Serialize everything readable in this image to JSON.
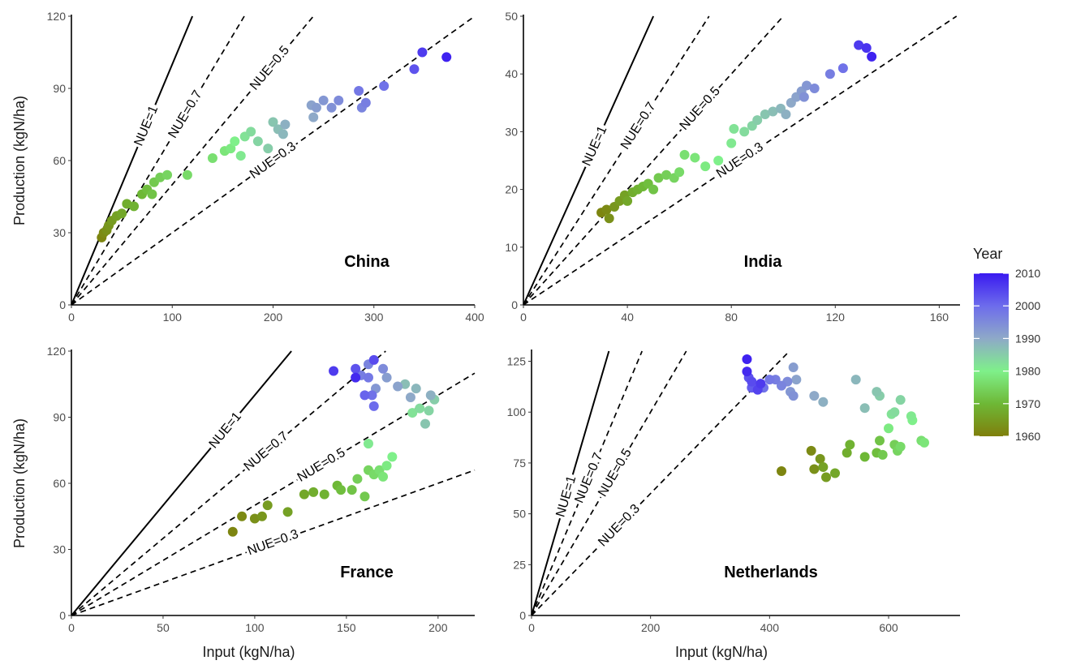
{
  "chart_data": [
    {
      "type": "scatter",
      "panel_label": "China",
      "xlabel": "",
      "ylabel": "Production (kgN/ha)",
      "xlim": [
        0,
        400
      ],
      "ylim": [
        0,
        120
      ],
      "xticks": [
        0,
        100,
        200,
        300,
        400
      ],
      "yticks": [
        0,
        30,
        60,
        90,
        120
      ],
      "reference_lines": [
        {
          "label": "NUE=1",
          "slope": 1,
          "style": "solid"
        },
        {
          "label": "NUE=0.7",
          "slope": 0.7,
          "style": "dashed"
        },
        {
          "label": "NUE=0.5",
          "slope": 0.5,
          "style": "dashed"
        },
        {
          "label": "NUE=0.3",
          "slope": 0.3,
          "style": "dashed"
        }
      ],
      "points": [
        {
          "x": 30,
          "y": 28,
          "year": 1961
        },
        {
          "x": 32,
          "y": 30,
          "year": 1962
        },
        {
          "x": 35,
          "y": 31,
          "year": 1963
        },
        {
          "x": 37,
          "y": 33,
          "year": 1964
        },
        {
          "x": 40,
          "y": 35,
          "year": 1965
        },
        {
          "x": 45,
          "y": 37,
          "year": 1966
        },
        {
          "x": 50,
          "y": 38,
          "year": 1967
        },
        {
          "x": 55,
          "y": 42,
          "year": 1968
        },
        {
          "x": 62,
          "y": 41,
          "year": 1969
        },
        {
          "x": 70,
          "y": 46,
          "year": 1970
        },
        {
          "x": 75,
          "y": 48,
          "year": 1971
        },
        {
          "x": 80,
          "y": 46,
          "year": 1972
        },
        {
          "x": 82,
          "y": 51,
          "year": 1973
        },
        {
          "x": 88,
          "y": 53,
          "year": 1974
        },
        {
          "x": 95,
          "y": 54,
          "year": 1975
        },
        {
          "x": 115,
          "y": 54,
          "year": 1976
        },
        {
          "x": 140,
          "y": 61,
          "year": 1977
        },
        {
          "x": 152,
          "y": 64,
          "year": 1978
        },
        {
          "x": 158,
          "y": 65,
          "year": 1979
        },
        {
          "x": 162,
          "y": 68,
          "year": 1980
        },
        {
          "x": 168,
          "y": 62,
          "year": 1981
        },
        {
          "x": 172,
          "y": 70,
          "year": 1982
        },
        {
          "x": 178,
          "y": 72,
          "year": 1983
        },
        {
          "x": 185,
          "y": 68,
          "year": 1984
        },
        {
          "x": 195,
          "y": 65,
          "year": 1985
        },
        {
          "x": 200,
          "y": 76,
          "year": 1986
        },
        {
          "x": 205,
          "y": 73,
          "year": 1987
        },
        {
          "x": 210,
          "y": 71,
          "year": 1988
        },
        {
          "x": 212,
          "y": 75,
          "year": 1989
        },
        {
          "x": 240,
          "y": 78,
          "year": 1990
        },
        {
          "x": 238,
          "y": 83,
          "year": 1991
        },
        {
          "x": 243,
          "y": 82,
          "year": 1992
        },
        {
          "x": 250,
          "y": 85,
          "year": 1993
        },
        {
          "x": 258,
          "y": 82,
          "year": 1994
        },
        {
          "x": 265,
          "y": 85,
          "year": 1995
        },
        {
          "x": 288,
          "y": 82,
          "year": 1996
        },
        {
          "x": 292,
          "y": 84,
          "year": 1997
        },
        {
          "x": 285,
          "y": 89,
          "year": 1998
        },
        {
          "x": 310,
          "y": 91,
          "year": 1999
        },
        {
          "x": 340,
          "y": 98,
          "year": 2003
        },
        {
          "x": 348,
          "y": 105,
          "year": 2006
        },
        {
          "x": 372,
          "y": 103,
          "year": 2009
        }
      ]
    },
    {
      "type": "scatter",
      "panel_label": "India",
      "xlabel": "",
      "ylabel": "",
      "xlim": [
        0,
        168
      ],
      "ylim": [
        0,
        50
      ],
      "xticks": [
        0,
        40,
        80,
        120,
        160
      ],
      "yticks": [
        0,
        10,
        20,
        30,
        40,
        50
      ],
      "reference_lines": [
        {
          "label": "NUE=1",
          "slope": 1,
          "style": "solid"
        },
        {
          "label": "NUE=0.7",
          "slope": 0.7,
          "style": "dashed"
        },
        {
          "label": "NUE=0.5",
          "slope": 0.5,
          "style": "dashed"
        },
        {
          "label": "NUE=0.3",
          "slope": 0.3,
          "style": "dashed"
        }
      ],
      "points": [
        {
          "x": 30,
          "y": 16,
          "year": 1961
        },
        {
          "x": 32,
          "y": 16.5,
          "year": 1962
        },
        {
          "x": 33,
          "y": 15,
          "year": 1963
        },
        {
          "x": 35,
          "y": 17,
          "year": 1964
        },
        {
          "x": 37,
          "y": 18,
          "year": 1965
        },
        {
          "x": 39,
          "y": 19,
          "year": 1966
        },
        {
          "x": 40,
          "y": 18,
          "year": 1967
        },
        {
          "x": 42,
          "y": 19.5,
          "year": 1968
        },
        {
          "x": 44,
          "y": 20,
          "year": 1969
        },
        {
          "x": 46,
          "y": 20.5,
          "year": 1970
        },
        {
          "x": 48,
          "y": 21,
          "year": 1971
        },
        {
          "x": 50,
          "y": 20,
          "year": 1972
        },
        {
          "x": 52,
          "y": 22,
          "year": 1973
        },
        {
          "x": 55,
          "y": 22.5,
          "year": 1974
        },
        {
          "x": 58,
          "y": 22,
          "year": 1975
        },
        {
          "x": 60,
          "y": 23,
          "year": 1976
        },
        {
          "x": 62,
          "y": 26,
          "year": 1977
        },
        {
          "x": 66,
          "y": 25.5,
          "year": 1978
        },
        {
          "x": 70,
          "y": 24,
          "year": 1979
        },
        {
          "x": 75,
          "y": 25,
          "year": 1980
        },
        {
          "x": 80,
          "y": 28,
          "year": 1981
        },
        {
          "x": 81,
          "y": 30.5,
          "year": 1982
        },
        {
          "x": 85,
          "y": 30,
          "year": 1983
        },
        {
          "x": 88,
          "y": 31,
          "year": 1984
        },
        {
          "x": 90,
          "y": 32,
          "year": 1985
        },
        {
          "x": 93,
          "y": 33,
          "year": 1986
        },
        {
          "x": 96,
          "y": 33.5,
          "year": 1987
        },
        {
          "x": 99,
          "y": 34,
          "year": 1988
        },
        {
          "x": 101,
          "y": 33,
          "year": 1989
        },
        {
          "x": 103,
          "y": 35,
          "year": 1990
        },
        {
          "x": 105,
          "y": 36,
          "year": 1991
        },
        {
          "x": 107,
          "y": 37,
          "year": 1992
        },
        {
          "x": 109,
          "y": 38,
          "year": 1993
        },
        {
          "x": 108,
          "y": 36,
          "year": 1994
        },
        {
          "x": 112,
          "y": 37.5,
          "year": 1995
        },
        {
          "x": 118,
          "y": 40,
          "year": 1997
        },
        {
          "x": 123,
          "y": 41,
          "year": 1999
        },
        {
          "x": 129,
          "y": 45,
          "year": 2006
        },
        {
          "x": 132,
          "y": 44.5,
          "year": 2007
        },
        {
          "x": 134,
          "y": 43,
          "year": 2009
        }
      ]
    },
    {
      "type": "scatter",
      "panel_label": "France",
      "xlabel": "Input (kgN/ha)",
      "ylabel": "Production (kgN/ha)",
      "xlim": [
        0,
        220
      ],
      "ylim": [
        0,
        120
      ],
      "xticks": [
        0,
        50,
        100,
        150,
        200
      ],
      "yticks": [
        0,
        30,
        60,
        90,
        120
      ],
      "reference_lines": [
        {
          "label": "NUE=1",
          "slope": 1,
          "style": "solid"
        },
        {
          "label": "NUE=0.7",
          "slope": 0.7,
          "style": "dashed"
        },
        {
          "label": "NUE=0.5",
          "slope": 0.5,
          "style": "dashed"
        },
        {
          "label": "NUE=0.3",
          "slope": 0.3,
          "style": "dashed"
        }
      ],
      "points": [
        {
          "x": 88,
          "y": 38,
          "year": 1961
        },
        {
          "x": 93,
          "y": 45,
          "year": 1962
        },
        {
          "x": 100,
          "y": 44,
          "year": 1963
        },
        {
          "x": 104,
          "y": 45,
          "year": 1964
        },
        {
          "x": 107,
          "y": 50,
          "year": 1965
        },
        {
          "x": 118,
          "y": 47,
          "year": 1966
        },
        {
          "x": 127,
          "y": 55,
          "year": 1967
        },
        {
          "x": 132,
          "y": 56,
          "year": 1968
        },
        {
          "x": 138,
          "y": 55,
          "year": 1969
        },
        {
          "x": 145,
          "y": 59,
          "year": 1970
        },
        {
          "x": 147,
          "y": 57,
          "year": 1971
        },
        {
          "x": 153,
          "y": 57,
          "year": 1972
        },
        {
          "x": 160,
          "y": 54,
          "year": 1973
        },
        {
          "x": 156,
          "y": 62,
          "year": 1974
        },
        {
          "x": 162,
          "y": 66,
          "year": 1975
        },
        {
          "x": 165,
          "y": 64,
          "year": 1976
        },
        {
          "x": 168,
          "y": 66,
          "year": 1977
        },
        {
          "x": 170,
          "y": 63,
          "year": 1978
        },
        {
          "x": 172,
          "y": 68,
          "year": 1979
        },
        {
          "x": 175,
          "y": 72,
          "year": 1980
        },
        {
          "x": 162,
          "y": 78,
          "year": 1981
        },
        {
          "x": 186,
          "y": 92,
          "year": 1982
        },
        {
          "x": 190,
          "y": 94,
          "year": 1983
        },
        {
          "x": 195,
          "y": 93,
          "year": 1984
        },
        {
          "x": 198,
          "y": 98,
          "year": 1985
        },
        {
          "x": 193,
          "y": 87,
          "year": 1986
        },
        {
          "x": 182,
          "y": 105,
          "year": 1987
        },
        {
          "x": 188,
          "y": 103,
          "year": 1988
        },
        {
          "x": 196,
          "y": 100,
          "year": 1989
        },
        {
          "x": 185,
          "y": 99,
          "year": 1990
        },
        {
          "x": 178,
          "y": 104,
          "year": 1991
        },
        {
          "x": 172,
          "y": 108,
          "year": 1992
        },
        {
          "x": 166,
          "y": 103,
          "year": 1993
        },
        {
          "x": 170,
          "y": 112,
          "year": 1995
        },
        {
          "x": 162,
          "y": 114,
          "year": 1996
        },
        {
          "x": 158,
          "y": 109,
          "year": 1997
        },
        {
          "x": 162,
          "y": 108,
          "year": 1998
        },
        {
          "x": 164,
          "y": 100,
          "year": 1999
        },
        {
          "x": 165,
          "y": 95,
          "year": 2000
        },
        {
          "x": 160,
          "y": 100,
          "year": 2001
        },
        {
          "x": 155,
          "y": 112,
          "year": 2003
        },
        {
          "x": 165,
          "y": 116,
          "year": 2004
        },
        {
          "x": 143,
          "y": 111,
          "year": 2006
        },
        {
          "x": 155,
          "y": 108,
          "year": 2008
        }
      ]
    },
    {
      "type": "scatter",
      "panel_label": "Netherlands",
      "xlabel": "Input (kgN/ha)",
      "ylabel": "",
      "xlim": [
        0,
        720
      ],
      "ylim": [
        0,
        130
      ],
      "xticks": [
        0,
        200,
        400,
        600
      ],
      "yticks": [
        0,
        25,
        50,
        75,
        100,
        125
      ],
      "reference_lines": [
        {
          "label": "NUE=1",
          "slope": 1,
          "style": "solid"
        },
        {
          "label": "NUE=0.7",
          "slope": 0.7,
          "style": "dashed"
        },
        {
          "label": "NUE=0.5",
          "slope": 0.5,
          "style": "dashed"
        },
        {
          "label": "NUE=0.3",
          "slope": 0.3,
          "style": "dashed"
        }
      ],
      "points": [
        {
          "x": 420,
          "y": 71,
          "year": 1961
        },
        {
          "x": 470,
          "y": 81,
          "year": 1962
        },
        {
          "x": 475,
          "y": 72,
          "year": 1963
        },
        {
          "x": 485,
          "y": 77,
          "year": 1964
        },
        {
          "x": 495,
          "y": 68,
          "year": 1965
        },
        {
          "x": 490,
          "y": 73,
          "year": 1966
        },
        {
          "x": 510,
          "y": 70,
          "year": 1967
        },
        {
          "x": 530,
          "y": 80,
          "year": 1968
        },
        {
          "x": 535,
          "y": 84,
          "year": 1969
        },
        {
          "x": 560,
          "y": 78,
          "year": 1970
        },
        {
          "x": 580,
          "y": 80,
          "year": 1971
        },
        {
          "x": 585,
          "y": 86,
          "year": 1972
        },
        {
          "x": 590,
          "y": 79,
          "year": 1973
        },
        {
          "x": 610,
          "y": 84,
          "year": 1974
        },
        {
          "x": 615,
          "y": 81,
          "year": 1975
        },
        {
          "x": 620,
          "y": 83,
          "year": 1976
        },
        {
          "x": 655,
          "y": 86,
          "year": 1977
        },
        {
          "x": 660,
          "y": 85,
          "year": 1978
        },
        {
          "x": 600,
          "y": 92,
          "year": 1979
        },
        {
          "x": 640,
          "y": 96,
          "year": 1980
        },
        {
          "x": 638,
          "y": 98,
          "year": 1981
        },
        {
          "x": 605,
          "y": 99,
          "year": 1982
        },
        {
          "x": 610,
          "y": 100,
          "year": 1983
        },
        {
          "x": 620,
          "y": 106,
          "year": 1984
        },
        {
          "x": 585,
          "y": 108,
          "year": 1985
        },
        {
          "x": 580,
          "y": 110,
          "year": 1986
        },
        {
          "x": 560,
          "y": 102,
          "year": 1987
        },
        {
          "x": 545,
          "y": 116,
          "year": 1988
        },
        {
          "x": 490,
          "y": 105,
          "year": 1989
        },
        {
          "x": 475,
          "y": 108,
          "year": 1990
        },
        {
          "x": 445,
          "y": 116,
          "year": 1991
        },
        {
          "x": 440,
          "y": 122,
          "year": 1992
        },
        {
          "x": 435,
          "y": 110,
          "year": 1993
        },
        {
          "x": 440,
          "y": 108,
          "year": 1994
        },
        {
          "x": 430,
          "y": 115,
          "year": 1995
        },
        {
          "x": 420,
          "y": 113,
          "year": 1996
        },
        {
          "x": 410,
          "y": 116,
          "year": 1997
        },
        {
          "x": 400,
          "y": 116,
          "year": 1998
        },
        {
          "x": 390,
          "y": 112,
          "year": 1999
        },
        {
          "x": 380,
          "y": 111,
          "year": 2000
        },
        {
          "x": 375,
          "y": 113,
          "year": 2001
        },
        {
          "x": 370,
          "y": 112,
          "year": 2002
        },
        {
          "x": 365,
          "y": 117,
          "year": 2003
        },
        {
          "x": 370,
          "y": 115,
          "year": 2004
        },
        {
          "x": 380,
          "y": 111,
          "year": 2005
        },
        {
          "x": 385,
          "y": 114,
          "year": 2006
        },
        {
          "x": 362,
          "y": 120,
          "year": 2008
        },
        {
          "x": 362,
          "y": 126,
          "year": 2009
        }
      ]
    }
  ],
  "legend": {
    "title": "Year",
    "ticks": [
      "2010",
      "2000",
      "1990",
      "1980",
      "1970",
      "1960"
    ],
    "range": [
      1960,
      2010
    ],
    "colors": [
      "#7f7f0c",
      "#6eb836",
      "#7ff08a",
      "#8ea9c8",
      "#6d6cec",
      "#3a1af0"
    ]
  }
}
